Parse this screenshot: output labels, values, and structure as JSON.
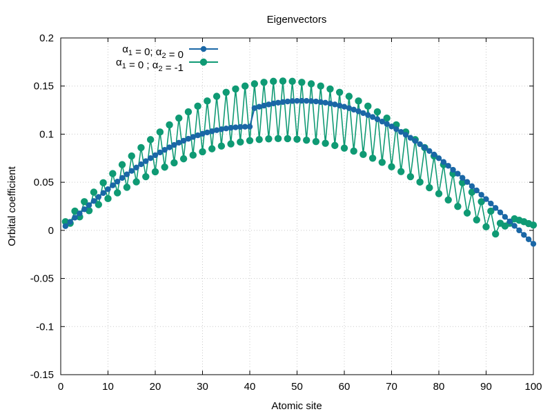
{
  "chart_data": {
    "type": "line",
    "title": "Eigenvectors",
    "xlabel": "Atomic site",
    "ylabel": "Orbital coefficient",
    "xlim": [
      0,
      100
    ],
    "ylim": [
      -0.15,
      0.2
    ],
    "grid": true,
    "legend_position": "top-left",
    "x_ticks": [
      {
        "value": 0,
        "label": "0"
      },
      {
        "value": 10,
        "label": "10"
      },
      {
        "value": 20,
        "label": "20"
      },
      {
        "value": 30,
        "label": "30"
      },
      {
        "value": 40,
        "label": "40"
      },
      {
        "value": 50,
        "label": "50"
      },
      {
        "value": 60,
        "label": "60"
      },
      {
        "value": 70,
        "label": "70"
      },
      {
        "value": 80,
        "label": "80"
      },
      {
        "value": 90,
        "label": "90"
      },
      {
        "value": 100,
        "label": "100"
      }
    ],
    "y_ticks": [
      {
        "value": -0.15,
        "label": "-0.15"
      },
      {
        "value": -0.1,
        "label": "-0.1"
      },
      {
        "value": -0.05,
        "label": "-0.05"
      },
      {
        "value": 0,
        "label": "0"
      },
      {
        "value": 0.05,
        "label": "0.05"
      },
      {
        "value": 0.1,
        "label": "0.1"
      },
      {
        "value": 0.15,
        "label": "0.15"
      },
      {
        "value": 0.2,
        "label": "0.2"
      }
    ],
    "series": [
      {
        "name": "α₁ = 0; α₂ = 0",
        "color": "#1a67a6",
        "marker": "circle-small",
        "x": [
          1,
          2,
          3,
          4,
          5,
          6,
          7,
          8,
          9,
          10,
          11,
          12,
          13,
          14,
          15,
          16,
          17,
          18,
          19,
          20,
          21,
          22,
          23,
          24,
          25,
          26,
          27,
          28,
          29,
          30,
          31,
          32,
          33,
          34,
          35,
          36,
          37,
          38,
          39,
          40,
          41,
          42,
          43,
          44,
          45,
          46,
          47,
          48,
          49,
          50,
          51,
          52,
          53,
          54,
          55,
          56,
          57,
          58,
          59,
          60,
          61,
          62,
          63,
          64,
          65,
          66,
          67,
          68,
          69,
          70,
          71,
          72,
          73,
          74,
          75,
          76,
          77,
          78,
          79,
          80,
          81,
          82,
          83,
          84,
          85,
          86,
          87,
          88,
          89,
          90,
          91,
          92,
          93,
          94,
          95,
          96,
          97,
          98,
          99,
          100
        ],
        "values": [
          0.0044,
          0.0088,
          0.0132,
          0.0176,
          0.0219,
          0.0262,
          0.0305,
          0.0347,
          0.0388,
          0.0428,
          0.0468,
          0.0507,
          0.0545,
          0.0582,
          0.0618,
          0.0653,
          0.0687,
          0.0719,
          0.0751,
          0.0781,
          0.081,
          0.0837,
          0.0863,
          0.0888,
          0.0911,
          0.0932,
          0.0952,
          0.0971,
          0.0988,
          0.1004,
          0.1018,
          0.103,
          0.1041,
          0.1051,
          0.1059,
          0.1066,
          0.1071,
          0.1075,
          0.1077,
          0.1078,
          0.1271,
          0.1285,
          0.1297,
          0.1309,
          0.1319,
          0.1327,
          0.1334,
          0.134,
          0.1344,
          0.1346,
          0.1347,
          0.1346,
          0.1344,
          0.134,
          0.1334,
          0.1327,
          0.1319,
          0.1309,
          0.1297,
          0.1285,
          0.1271,
          0.1255,
          0.1238,
          0.1219,
          0.1199,
          0.1178,
          0.1155,
          0.1131,
          0.1106,
          0.108,
          0.1052,
          0.1023,
          0.0993,
          0.0962,
          0.0929,
          0.0896,
          0.0861,
          0.0825,
          0.0788,
          0.075,
          0.0711,
          0.0671,
          0.063,
          0.0589,
          0.0546,
          0.0503,
          0.0459,
          0.0415,
          0.037,
          0.0325,
          0.0279,
          0.0233,
          0.0187,
          0.014,
          0.0093,
          0.0047,
          0.0,
          -0.0047,
          -0.0093,
          -0.014
        ]
      },
      {
        "name": "α₁ = 0 ; α₂ = -1",
        "color": "#0f9a74",
        "marker": "circle-large",
        "x": [
          1,
          2,
          3,
          4,
          5,
          6,
          7,
          8,
          9,
          10,
          11,
          12,
          13,
          14,
          15,
          16,
          17,
          18,
          19,
          20,
          21,
          22,
          23,
          24,
          25,
          26,
          27,
          28,
          29,
          30,
          31,
          32,
          33,
          34,
          35,
          36,
          37,
          38,
          39,
          40,
          41,
          42,
          43,
          44,
          45,
          46,
          47,
          48,
          49,
          50,
          51,
          52,
          53,
          54,
          55,
          56,
          57,
          58,
          59,
          60,
          61,
          62,
          63,
          64,
          65,
          66,
          67,
          68,
          69,
          70,
          71,
          72,
          73,
          74,
          75,
          76,
          77,
          78,
          79,
          80,
          81,
          82,
          83,
          84,
          85,
          86,
          87,
          88,
          89,
          90,
          91,
          92,
          93,
          94,
          95,
          96,
          97,
          98,
          99,
          100
        ],
        "values": [
          0.009,
          0.0074,
          0.02,
          0.014,
          0.0298,
          0.0205,
          0.0397,
          0.0268,
          0.0495,
          0.033,
          0.059,
          0.039,
          0.0683,
          0.0448,
          0.0773,
          0.0504,
          0.086,
          0.0558,
          0.0943,
          0.0609,
          0.1022,
          0.0657,
          0.1097,
          0.0702,
          0.1167,
          0.0744,
          0.1232,
          0.0782,
          0.1291,
          0.0817,
          0.1345,
          0.0848,
          0.1393,
          0.0876,
          0.1435,
          0.0899,
          0.147,
          0.0918,
          0.15,
          0.0933,
          0.1523,
          0.0944,
          0.1539,
          0.0951,
          0.1549,
          0.0954,
          0.1552,
          0.0953,
          0.1549,
          0.0947,
          0.1539,
          0.0937,
          0.1523,
          0.0923,
          0.15,
          0.0905,
          0.147,
          0.0882,
          0.1435,
          0.0855,
          0.1393,
          0.0824,
          0.1345,
          0.0789,
          0.1291,
          0.075,
          0.1232,
          0.0707,
          0.1167,
          0.0661,
          0.1097,
          0.0611,
          0.1022,
          0.0558,
          0.0943,
          0.0502,
          0.086,
          0.0443,
          0.0773,
          0.0381,
          0.0683,
          0.0316,
          0.059,
          0.0249,
          0.0495,
          0.018,
          0.0397,
          0.0109,
          0.0298,
          0.0037,
          0.02,
          -0.0037,
          0.0074,
          0.0045,
          0.0074,
          0.012,
          0.0105,
          0.009,
          0.007,
          0.0055
        ]
      }
    ],
    "legend": [
      {
        "series": 0,
        "label_parts": [
          [
            "α",
            "1"
          ],
          [
            " = 0; α",
            "2"
          ],
          [
            " = 0",
            ""
          ]
        ]
      },
      {
        "series": 1,
        "label_parts": [
          [
            "α",
            "1"
          ],
          [
            " = 0 ; α",
            "2"
          ],
          [
            " = -1",
            ""
          ]
        ]
      }
    ]
  }
}
